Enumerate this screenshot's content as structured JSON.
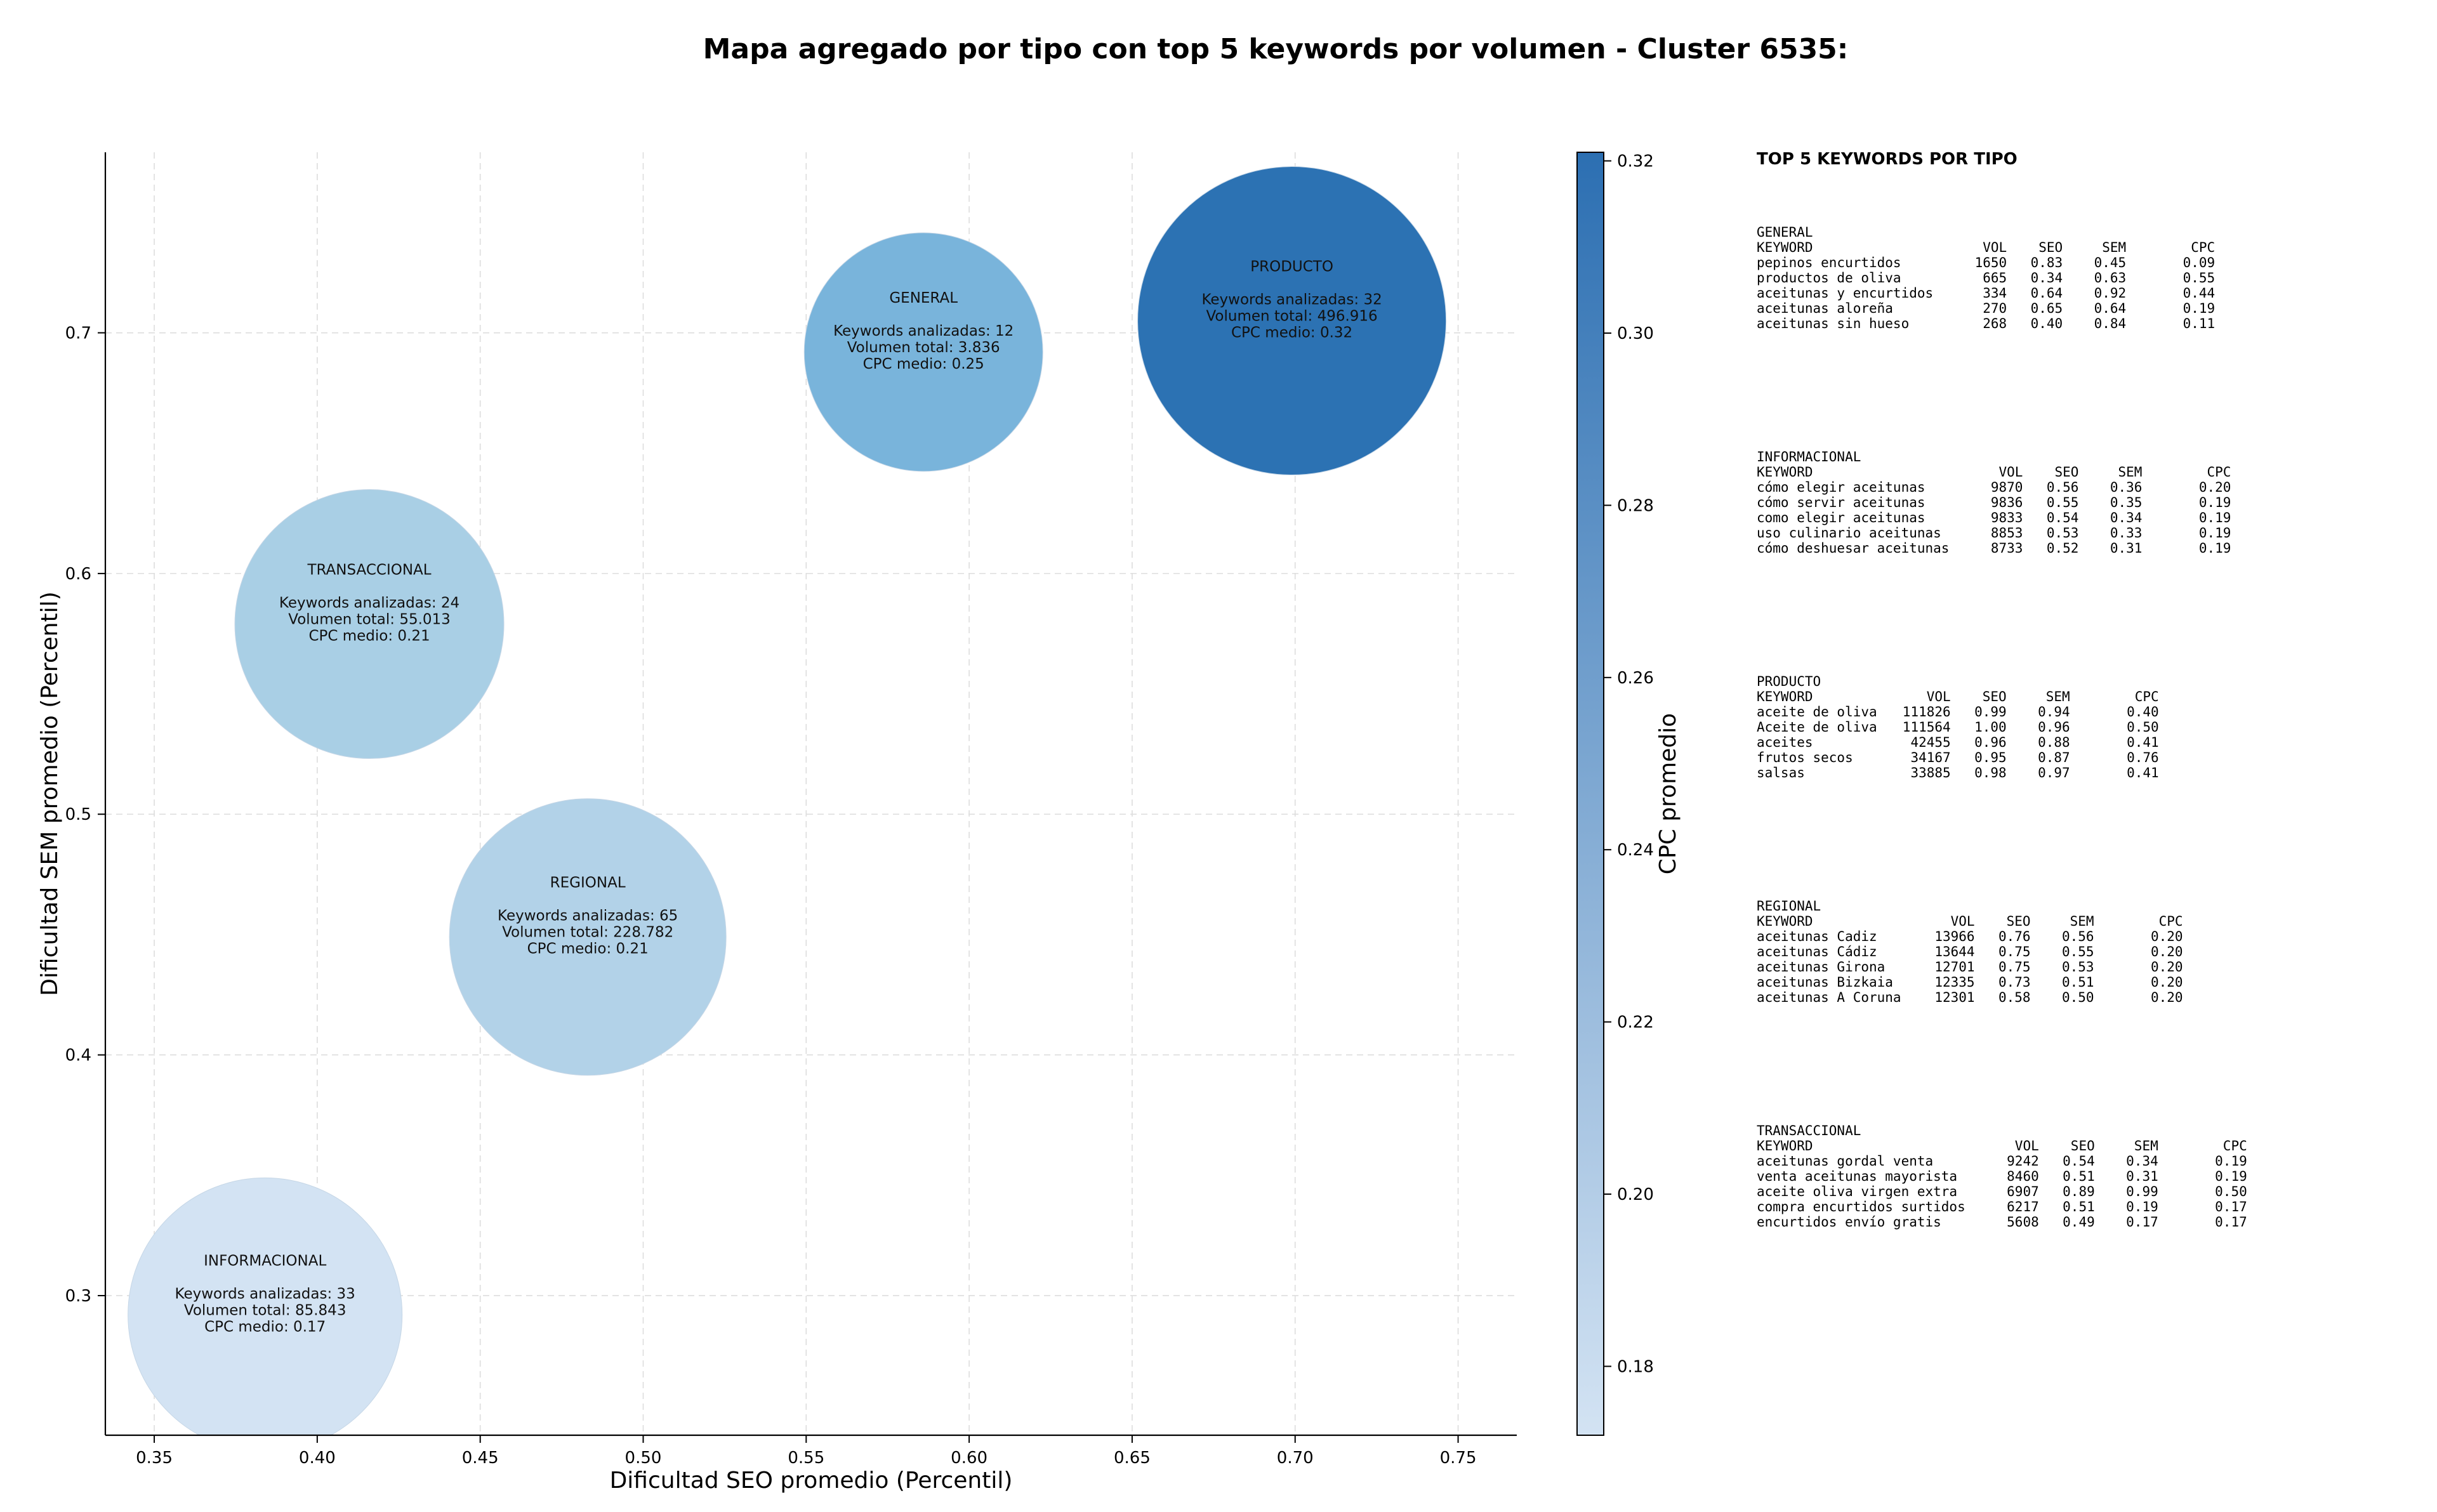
{
  "chart_data": {
    "type": "scatter",
    "title": "Mapa agregado por tipo con top 5 keywords por volumen - Cluster 6535:",
    "xlabel": "Dificultad SEO promedio (Percentil)",
    "ylabel": "Dificultad SEM promedio (Percentil)",
    "xlim": [
      0.335,
      0.768
    ],
    "ylim": [
      0.242,
      0.775
    ],
    "xticks": [
      0.35,
      0.4,
      0.45,
      0.5,
      0.55,
      0.6,
      0.65,
      0.7,
      0.75
    ],
    "xtick_labels": [
      "0.35",
      "0.40",
      "0.45",
      "0.50",
      "0.55",
      "0.60",
      "0.65",
      "0.70",
      "0.75"
    ],
    "yticks": [
      0.3,
      0.4,
      0.5,
      0.6,
      0.7
    ],
    "ytick_labels": [
      "0.3",
      "0.4",
      "0.5",
      "0.6",
      "0.7"
    ],
    "grid": true,
    "colorbar": {
      "label": "CPC promedio",
      "range": [
        0.172,
        0.321
      ],
      "ticks": [
        0.18,
        0.2,
        0.22,
        0.24,
        0.26,
        0.28,
        0.3,
        0.32
      ],
      "tick_labels": [
        "0.18",
        "0.20",
        "0.22",
        "0.24",
        "0.26",
        "0.28",
        "0.30",
        "0.32"
      ],
      "color_low": "#d3e3f3",
      "color_high": "#2c6fb2"
    },
    "points": [
      {
        "name": "GENERAL",
        "x": 0.586,
        "y": 0.692,
        "size": 12,
        "cpc": 0.25,
        "color": "#79b4db",
        "label_lines": [
          "GENERAL",
          "",
          "Keywords analizadas: 12",
          "Volumen total: 3.836",
          "CPC medio: 0.25"
        ]
      },
      {
        "name": "PRODUCTO",
        "x": 0.699,
        "y": 0.705,
        "size": 32,
        "cpc": 0.32,
        "color": "#2c72b3",
        "label_lines": [
          "PRODUCTO",
          "",
          "Keywords analizadas: 32",
          "Volumen total: 496.916",
          "CPC medio: 0.32"
        ]
      },
      {
        "name": "TRANSACCIONAL",
        "x": 0.416,
        "y": 0.579,
        "size": 24,
        "cpc": 0.21,
        "color": "#a9cfe5",
        "label_lines": [
          "TRANSACCIONAL",
          "",
          "Keywords analizadas: 24",
          "Volumen total: 55.013",
          "CPC medio: 0.21"
        ]
      },
      {
        "name": "REGIONAL",
        "x": 0.483,
        "y": 0.449,
        "size": 65,
        "cpc": 0.21,
        "color": "#b2d2e8",
        "label_lines": [
          "REGIONAL",
          "",
          "Keywords analizadas: 65",
          "Volumen total: 228.782",
          "CPC medio: 0.21"
        ]
      },
      {
        "name": "INFORMACIONAL",
        "x": 0.384,
        "y": 0.292,
        "size": 33,
        "cpc": 0.17,
        "color": "#d3e3f3",
        "label_lines": [
          "INFORMACIONAL",
          "",
          "Keywords analizadas: 33",
          "Volumen total: 85.843",
          "CPC medio: 0.17"
        ]
      }
    ]
  },
  "side_panel": {
    "heading": "TOP 5 KEYWORDS POR TIPO",
    "groups": [
      {
        "type": "GENERAL",
        "headers": [
          "KEYWORD",
          "VOL",
          "SEO",
          "SEM",
          "CPC"
        ],
        "rows": [
          [
            "pepinos encurtidos",
            "1650",
            "0.83",
            "0.45",
            "0.09"
          ],
          [
            "productos de oliva",
            "665",
            "0.34",
            "0.63",
            "0.55"
          ],
          [
            "aceitunas y encurtidos",
            "334",
            "0.64",
            "0.92",
            "0.44"
          ],
          [
            "aceitunas aloreña",
            "270",
            "0.65",
            "0.64",
            "0.19"
          ],
          [
            "aceitunas sin hueso",
            "268",
            "0.40",
            "0.84",
            "0.11"
          ]
        ]
      },
      {
        "type": "INFORMACIONAL",
        "headers": [
          "KEYWORD",
          "VOL",
          "SEO",
          "SEM",
          "CPC"
        ],
        "rows": [
          [
            "cómo elegir aceitunas",
            "9870",
            "0.56",
            "0.36",
            "0.20"
          ],
          [
            "cómo servir aceitunas",
            "9836",
            "0.55",
            "0.35",
            "0.19"
          ],
          [
            "como elegir aceitunas",
            "9833",
            "0.54",
            "0.34",
            "0.19"
          ],
          [
            "uso culinario aceitunas",
            "8853",
            "0.53",
            "0.33",
            "0.19"
          ],
          [
            "cómo deshuesar aceitunas",
            "8733",
            "0.52",
            "0.31",
            "0.19"
          ]
        ]
      },
      {
        "type": "PRODUCTO",
        "headers": [
          "KEYWORD",
          "VOL",
          "SEO",
          "SEM",
          "CPC"
        ],
        "rows": [
          [
            "aceite de oliva",
            "111826",
            "0.99",
            "0.94",
            "0.40"
          ],
          [
            "Aceite de oliva",
            "111564",
            "1.00",
            "0.96",
            "0.50"
          ],
          [
            "aceites",
            "42455",
            "0.96",
            "0.88",
            "0.41"
          ],
          [
            "frutos secos",
            "34167",
            "0.95",
            "0.87",
            "0.76"
          ],
          [
            "salsas",
            "33885",
            "0.98",
            "0.97",
            "0.41"
          ]
        ]
      },
      {
        "type": "REGIONAL",
        "headers": [
          "KEYWORD",
          "VOL",
          "SEO",
          "SEM",
          "CPC"
        ],
        "rows": [
          [
            "aceitunas Cadiz",
            "13966",
            "0.76",
            "0.56",
            "0.20"
          ],
          [
            "aceitunas Cádiz",
            "13644",
            "0.75",
            "0.55",
            "0.20"
          ],
          [
            "aceitunas Girona",
            "12701",
            "0.75",
            "0.53",
            "0.20"
          ],
          [
            "aceitunas Bizkaia",
            "12335",
            "0.73",
            "0.51",
            "0.20"
          ],
          [
            "aceitunas A Coruna",
            "12301",
            "0.58",
            "0.50",
            "0.20"
          ]
        ]
      },
      {
        "type": "TRANSACCIONAL",
        "headers": [
          "KEYWORD",
          "VOL",
          "SEO",
          "SEM",
          "CPC"
        ],
        "rows": [
          [
            "aceitunas gordal venta",
            "9242",
            "0.54",
            "0.34",
            "0.19"
          ],
          [
            "venta aceitunas mayorista",
            "8460",
            "0.51",
            "0.31",
            "0.19"
          ],
          [
            "aceite oliva virgen extra",
            "6907",
            "0.89",
            "0.99",
            "0.50"
          ],
          [
            "compra encurtidos surtidos",
            "6217",
            "0.51",
            "0.19",
            "0.17"
          ],
          [
            "encurtidos envío gratis",
            "5608",
            "0.49",
            "0.17",
            "0.17"
          ]
        ]
      }
    ]
  }
}
